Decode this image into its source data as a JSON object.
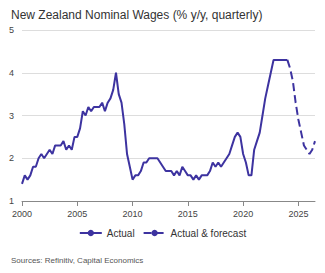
{
  "chart_data": {
    "type": "line",
    "title": "New Zealand Nominal Wages (% y/y, quarterly)",
    "source": "Sources: Refinitiv, Capital Economics",
    "x": [
      2000,
      2000.25,
      2000.5,
      2000.75,
      2001,
      2001.25,
      2001.5,
      2001.75,
      2002,
      2002.25,
      2002.5,
      2002.75,
      2003,
      2003.25,
      2003.5,
      2003.75,
      2004,
      2004.25,
      2004.5,
      2004.75,
      2005,
      2005.25,
      2005.5,
      2005.75,
      2006,
      2006.25,
      2006.5,
      2006.75,
      2007,
      2007.25,
      2007.5,
      2007.75,
      2008,
      2008.25,
      2008.5,
      2008.75,
      2009,
      2009.25,
      2009.5,
      2009.75,
      2010,
      2010.25,
      2010.5,
      2010.75,
      2011,
      2011.25,
      2011.5,
      2011.75,
      2012,
      2012.25,
      2012.5,
      2012.75,
      2013,
      2013.25,
      2013.5,
      2013.75,
      2014,
      2014.25,
      2014.5,
      2014.75,
      2015,
      2015.25,
      2015.5,
      2015.75,
      2016,
      2016.25,
      2016.5,
      2016.75,
      2017,
      2017.25,
      2017.5,
      2017.75,
      2018,
      2018.25,
      2018.5,
      2018.75,
      2019,
      2019.25,
      2019.5,
      2019.75,
      2020,
      2020.25,
      2020.5,
      2020.75,
      2021,
      2021.25,
      2021.5,
      2021.75,
      2022,
      2022.25,
      2022.5,
      2022.75,
      2023,
      2023.25,
      2023.5,
      2023.75,
      2024,
      2024.25,
      2024.5,
      2024.75,
      2025,
      2025.25,
      2025.5,
      2025.75,
      2026,
      2026.25,
      2026.5
    ],
    "series": [
      {
        "name": "Actual",
        "color": "#3d33a0",
        "line_style": "solid",
        "values": [
          1.4,
          1.6,
          1.5,
          1.6,
          1.8,
          1.8,
          2.0,
          2.1,
          2.0,
          2.1,
          2.2,
          2.1,
          2.3,
          2.3,
          2.3,
          2.4,
          2.2,
          2.3,
          2.2,
          2.5,
          2.5,
          2.7,
          3.1,
          3.0,
          3.2,
          3.1,
          3.2,
          3.2,
          3.2,
          3.3,
          3.1,
          3.3,
          3.4,
          3.6,
          4.0,
          3.5,
          3.3,
          2.8,
          2.1,
          1.8,
          1.5,
          1.6,
          1.6,
          1.7,
          1.9,
          1.9,
          2.0,
          2.0,
          2.0,
          2.0,
          1.9,
          1.8,
          1.7,
          1.7,
          1.7,
          1.6,
          1.7,
          1.6,
          1.8,
          1.7,
          1.6,
          1.6,
          1.5,
          1.6,
          1.5,
          1.6,
          1.6,
          1.6,
          1.7,
          1.9,
          1.8,
          1.9,
          1.8,
          1.9,
          2.0,
          2.1,
          2.3,
          2.5,
          2.6,
          2.5,
          2.1,
          1.9,
          1.6,
          1.6,
          2.2,
          2.4,
          2.6,
          3.0,
          3.4,
          3.7,
          4.0,
          4.3,
          4.3,
          4.3,
          4.3,
          4.3,
          4.3,
          null,
          null,
          null,
          null,
          null,
          null,
          null,
          null,
          null,
          null
        ]
      },
      {
        "name": "Actual & forecast",
        "color": "#3d33a0",
        "line_style": "dashed",
        "values": [
          null,
          null,
          null,
          null,
          null,
          null,
          null,
          null,
          null,
          null,
          null,
          null,
          null,
          null,
          null,
          null,
          null,
          null,
          null,
          null,
          null,
          null,
          null,
          null,
          null,
          null,
          null,
          null,
          null,
          null,
          null,
          null,
          null,
          null,
          null,
          null,
          null,
          null,
          null,
          null,
          null,
          null,
          null,
          null,
          null,
          null,
          null,
          null,
          null,
          null,
          null,
          null,
          null,
          null,
          null,
          null,
          null,
          null,
          null,
          null,
          null,
          null,
          null,
          null,
          null,
          null,
          null,
          null,
          null,
          null,
          null,
          null,
          null,
          null,
          null,
          null,
          null,
          null,
          null,
          null,
          null,
          null,
          null,
          null,
          null,
          null,
          null,
          null,
          null,
          null,
          null,
          null,
          null,
          null,
          null,
          null,
          4.3,
          4.1,
          3.8,
          3.3,
          2.9,
          2.6,
          2.3,
          2.2,
          2.1,
          2.2,
          2.4
        ]
      }
    ],
    "xlim": [
      2000,
      2026.5
    ],
    "xticks": [
      2000,
      2005,
      2010,
      2015,
      2020,
      2025
    ],
    "ylim": [
      1,
      5
    ],
    "yticks": [
      1,
      2,
      3,
      4,
      5
    ],
    "grid": true,
    "legend": "bottom"
  }
}
